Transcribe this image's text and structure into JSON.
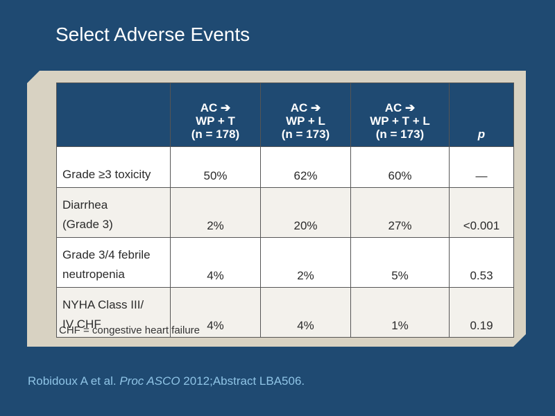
{
  "slide": {
    "title": "Select Adverse Events"
  },
  "table": {
    "headers": [
      {
        "lines": []
      },
      {
        "lines": [
          "AC ➔",
          "WP + T",
          "(n = 178)"
        ]
      },
      {
        "lines": [
          "AC ➔",
          "WP + L",
          "(n = 173)"
        ]
      },
      {
        "lines": [
          "AC ➔",
          "WP + T + L",
          "(n = 173)"
        ]
      },
      {
        "lines": [
          "p"
        ]
      }
    ],
    "rows": [
      {
        "label": [
          "Grade ≥3 toxicity"
        ],
        "values": [
          "50%",
          "62%",
          "60%",
          "—"
        ]
      },
      {
        "label": [
          "Diarrhea",
          "(Grade 3)"
        ],
        "values": [
          "2%",
          "20%",
          "27%",
          "<0.001"
        ]
      },
      {
        "label": [
          "Grade 3/4 febrile",
          "neutropenia"
        ],
        "values": [
          "4%",
          "2%",
          "5%",
          "0.53"
        ]
      },
      {
        "label": [
          "NYHA Class III/",
          "IV CHF"
        ],
        "values": [
          "4%",
          "4%",
          "1%",
          "0.19"
        ]
      }
    ]
  },
  "footnote": "CHF = congestive heart failure",
  "citation": {
    "authors": "Robidoux A et al.",
    "journal": "Proc ASCO",
    "rest": "2012;Abstract LBA506."
  }
}
